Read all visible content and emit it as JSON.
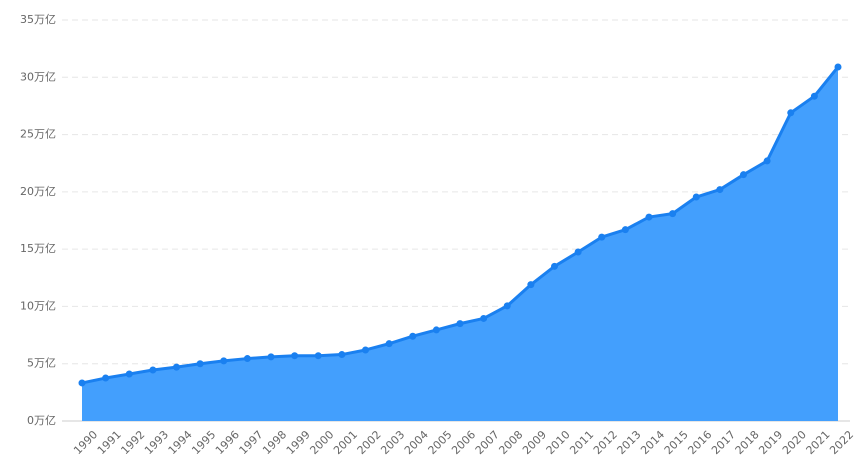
{
  "chart_data": {
    "type": "area",
    "categories": [
      "1990",
      "1991",
      "1992",
      "1993",
      "1994",
      "1995",
      "1996",
      "1997",
      "1998",
      "1999",
      "2000",
      "2001",
      "2002",
      "2003",
      "2004",
      "2005",
      "2006",
      "2007",
      "2008",
      "2009",
      "2010",
      "2011",
      "2012",
      "2013",
      "2014",
      "2015",
      "2016",
      "2017",
      "2018",
      "2019",
      "2020",
      "2021",
      "2022"
    ],
    "values": [
      3.32,
      3.75,
      4.1,
      4.45,
      4.7,
      5.0,
      5.25,
      5.45,
      5.6,
      5.7,
      5.7,
      5.8,
      6.2,
      6.75,
      7.4,
      7.95,
      8.5,
      8.95,
      10.05,
      11.9,
      13.5,
      14.75,
      16.05,
      16.7,
      17.8,
      18.1,
      19.55,
      20.2,
      21.5,
      22.7,
      26.9,
      28.35,
      30.9
    ],
    "color": "#1a80f0",
    "fill": "#439ffd",
    "ylim": [
      0,
      35
    ],
    "yticks": [
      {
        "value": 0,
        "label": "0万亿"
      },
      {
        "value": 5,
        "label": "5万亿"
      },
      {
        "value": 10,
        "label": "10万亿"
      },
      {
        "value": 15,
        "label": "15万亿"
      },
      {
        "value": 20,
        "label": "20万亿"
      },
      {
        "value": 25,
        "label": "25万亿"
      },
      {
        "value": 30,
        "label": "30万亿"
      },
      {
        "value": 35,
        "label": "35万亿"
      }
    ],
    "grid": true
  }
}
